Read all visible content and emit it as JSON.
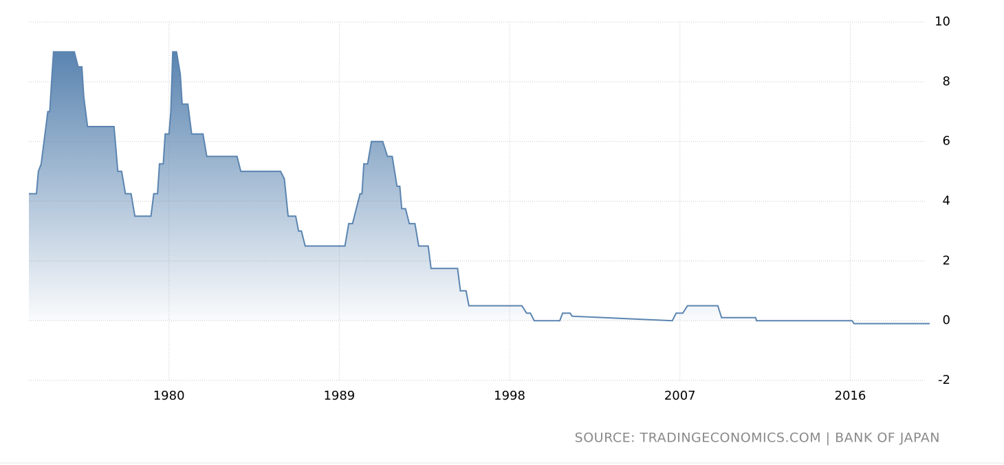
{
  "chart_data": {
    "type": "area",
    "source": "SOURCE: TRADINGECONOMICS.COM | BANK OF JAPAN",
    "x": [
      1972.6,
      1973.0,
      1973.1,
      1973.25,
      1973.4,
      1973.5,
      1973.6,
      1973.7,
      1973.8,
      1973.9,
      1975.0,
      1975.2,
      1975.4,
      1975.5,
      1975.7,
      1977.1,
      1977.2,
      1977.3,
      1977.5,
      1977.7,
      1978.0,
      1978.2,
      1979.05,
      1979.2,
      1979.4,
      1979.5,
      1979.7,
      1979.8,
      1980.0,
      1980.1,
      1980.2,
      1980.4,
      1980.6,
      1980.7,
      1981.0,
      1981.2,
      1981.8,
      1982.0,
      1983.6,
      1983.8,
      1985.9,
      1986.1,
      1986.3,
      1986.7,
      1986.85,
      1987.0,
      1987.2,
      1989.3,
      1989.5,
      1989.7,
      1989.9,
      1990.1,
      1990.2,
      1990.3,
      1990.5,
      1990.7,
      1991.3,
      1991.55,
      1991.8,
      1992.05,
      1992.2,
      1992.3,
      1992.5,
      1992.7,
      1993.0,
      1993.2,
      1993.7,
      1993.85,
      1995.25,
      1995.4,
      1995.7,
      1995.85,
      1998.65,
      1998.9,
      1999.1,
      1999.3,
      2000.65,
      2000.8,
      2001.2,
      2001.3,
      2006.6,
      2006.8,
      2007.15,
      2007.4,
      2009.0,
      2009.2,
      2011.0,
      2011.05,
      2016.1,
      2016.2,
      2020.2
    ],
    "values": [
      4.25,
      4.25,
      5.0,
      5.25,
      6.0,
      6.5,
      7.0,
      7.0,
      8.0,
      9.0,
      9.0,
      8.5,
      8.5,
      7.5,
      6.5,
      6.5,
      5.75,
      5.0,
      5.0,
      4.25,
      4.25,
      3.5,
      3.5,
      4.25,
      4.25,
      5.25,
      5.25,
      6.25,
      6.25,
      7.0,
      9.0,
      9.0,
      8.25,
      7.25,
      7.25,
      6.25,
      6.25,
      5.5,
      5.5,
      5.0,
      5.0,
      4.75,
      3.5,
      3.5,
      3.0,
      3.0,
      2.5,
      2.5,
      3.25,
      3.25,
      3.75,
      4.25,
      4.25,
      5.25,
      5.25,
      6.0,
      6.0,
      5.5,
      5.5,
      4.5,
      4.5,
      3.75,
      3.75,
      3.25,
      3.25,
      2.5,
      2.5,
      1.75,
      1.75,
      1.0,
      1.0,
      0.5,
      0.5,
      0.25,
      0.25,
      0.0,
      0.0,
      0.25,
      0.25,
      0.15,
      0.0,
      0.25,
      0.25,
      0.5,
      0.5,
      0.1,
      0.1,
      0.0,
      0.0,
      -0.1,
      -0.1
    ],
    "color": "#5a84b0",
    "xlim": [
      1972.6,
      2020.2
    ],
    "xticks": [
      1980,
      1989,
      1998,
      2007,
      2016
    ],
    "ylim": [
      -2,
      10
    ],
    "yticks": [
      -2,
      0,
      2,
      4,
      6,
      8,
      10
    ],
    "grid": true
  }
}
